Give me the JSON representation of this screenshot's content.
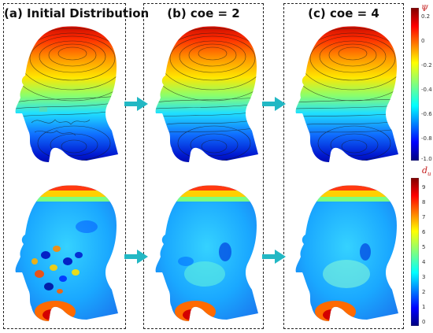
{
  "panels": [
    {
      "title": "(a) Initial Distribution"
    },
    {
      "title": "(b) coe = 2"
    },
    {
      "title": "(c) coe = 4"
    }
  ],
  "colorbar_top": {
    "symbol": "Ψ",
    "ticks": [
      "0.2",
      "0",
      "-0.2",
      "-0.4",
      "-0.6",
      "-0.8",
      "-1.0"
    ],
    "range": [
      -1.0,
      0.2
    ]
  },
  "colorbar_bottom": {
    "symbol": "d",
    "symbol_sub": "u",
    "ticks": [
      "9",
      "8",
      "7",
      "6",
      "5",
      "4",
      "3",
      "2",
      "1",
      "0"
    ],
    "range": [
      0,
      9.5
    ]
  },
  "colors": {
    "arrow": "#22b8c4",
    "jet": [
      "#00007f",
      "#0000ff",
      "#007fff",
      "#00ffff",
      "#7fff7f",
      "#ffff00",
      "#ff7f00",
      "#ff0000",
      "#7f0000"
    ]
  }
}
